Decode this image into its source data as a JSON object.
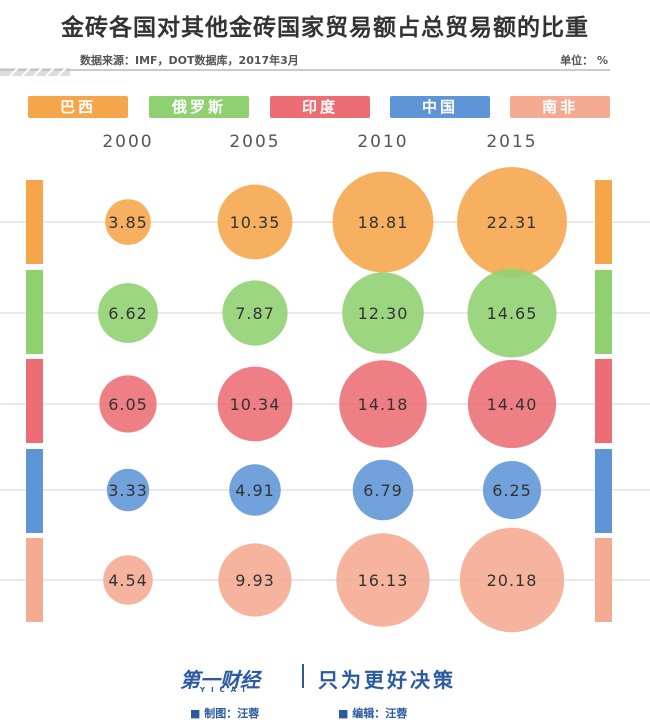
{
  "title": "金砖各国对其他金砖国家贸易额占总贸易额的比重",
  "source": "数据来源：IMF，DOT数据库，2017年3月",
  "unit": "单位： %",
  "legend": [
    {
      "name": "巴西",
      "color": "#f5a54a"
    },
    {
      "name": "俄罗斯",
      "color": "#8fd070"
    },
    {
      "name": "印度",
      "color": "#ec6d74"
    },
    {
      "name": "中国",
      "color": "#5e95d6"
    },
    {
      "name": "南非",
      "color": "#f5aa92"
    }
  ],
  "chart_data": {
    "type": "bubble",
    "title": "金砖各国对其他金砖国家贸易额占总贸易额的比重",
    "x": [
      "2000",
      "2005",
      "2010",
      "2015"
    ],
    "unit": "%",
    "series": [
      {
        "name": "巴西",
        "values": [
          3.85,
          10.35,
          18.81,
          22.31
        ]
      },
      {
        "name": "俄罗斯",
        "values": [
          6.62,
          7.87,
          12.3,
          14.65
        ]
      },
      {
        "name": "印度",
        "values": [
          6.05,
          10.34,
          14.18,
          14.4
        ]
      },
      {
        "name": "中国",
        "values": [
          3.33,
          4.91,
          6.79,
          6.25
        ]
      },
      {
        "name": "南非",
        "values": [
          4.54,
          9.93,
          16.13,
          20.18
        ]
      }
    ],
    "labels": [
      [
        "3.85",
        "10.35",
        "18.81",
        "22.31"
      ],
      [
        "6.62",
        "7.87",
        "12.30",
        "14.65"
      ],
      [
        "6.05",
        "10.34",
        "14.18",
        "14.40"
      ],
      [
        "3.33",
        "4.91",
        "6.79",
        "6.25"
      ],
      [
        "4.54",
        "9.93",
        "16.13",
        "20.18"
      ]
    ],
    "grid": true,
    "legend_position": "top"
  },
  "footer": {
    "logo": "第一财经",
    "logo_sub": "YICAI",
    "slogan": "只为更好决策",
    "credit_chart": "■ 制图：汪蓉",
    "credit_edit": "■ 编辑：汪蓉"
  }
}
